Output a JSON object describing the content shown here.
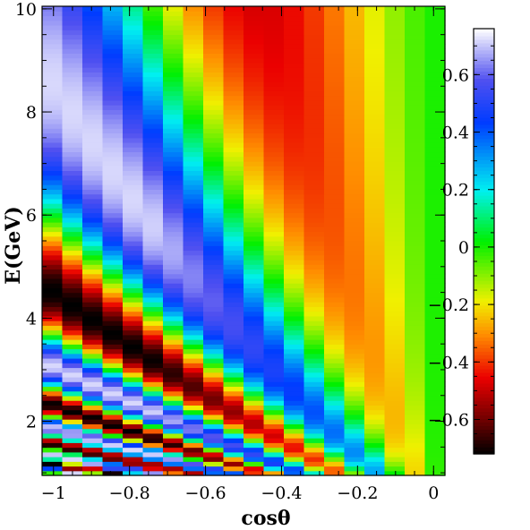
{
  "chart_data": {
    "type": "heatmap",
    "title": "",
    "xlabel": "cosθ",
    "ylabel": "E(GeV)",
    "xlim": [
      -1.03,
      0.03
    ],
    "ylim": [
      0.95,
      10.05
    ],
    "zlim": [
      -0.72,
      0.76
    ],
    "x_bins": 20,
    "y_bins": 100,
    "x_tick_labels": [
      "−1",
      "−0.8",
      "−0.6",
      "−0.4",
      "−0.2",
      "0"
    ],
    "x_tick_values": [
      -1,
      -0.8,
      -0.6,
      -0.4,
      -0.2,
      0
    ],
    "y_tick_labels": [
      "2",
      "4",
      "6",
      "8",
      "10"
    ],
    "y_tick_values": [
      2,
      4,
      6,
      8,
      10
    ],
    "colorbar": {
      "tick_labels": [
        "0.6",
        "0.4",
        "0.2",
        "0",
        "−0.2",
        "−0.4",
        "−0.6"
      ],
      "tick_values": [
        0.6,
        0.4,
        0.2,
        0,
        -0.2,
        -0.4,
        -0.6
      ],
      "colormap": "black-red-orange-yellow-green-cyan-blue-white"
    },
    "description_of_values": "Oscillation pattern: z = -0.7*sin(phase) with phase proportional to |cosθ|/E; amplitude decays toward cosθ = 0"
  }
}
